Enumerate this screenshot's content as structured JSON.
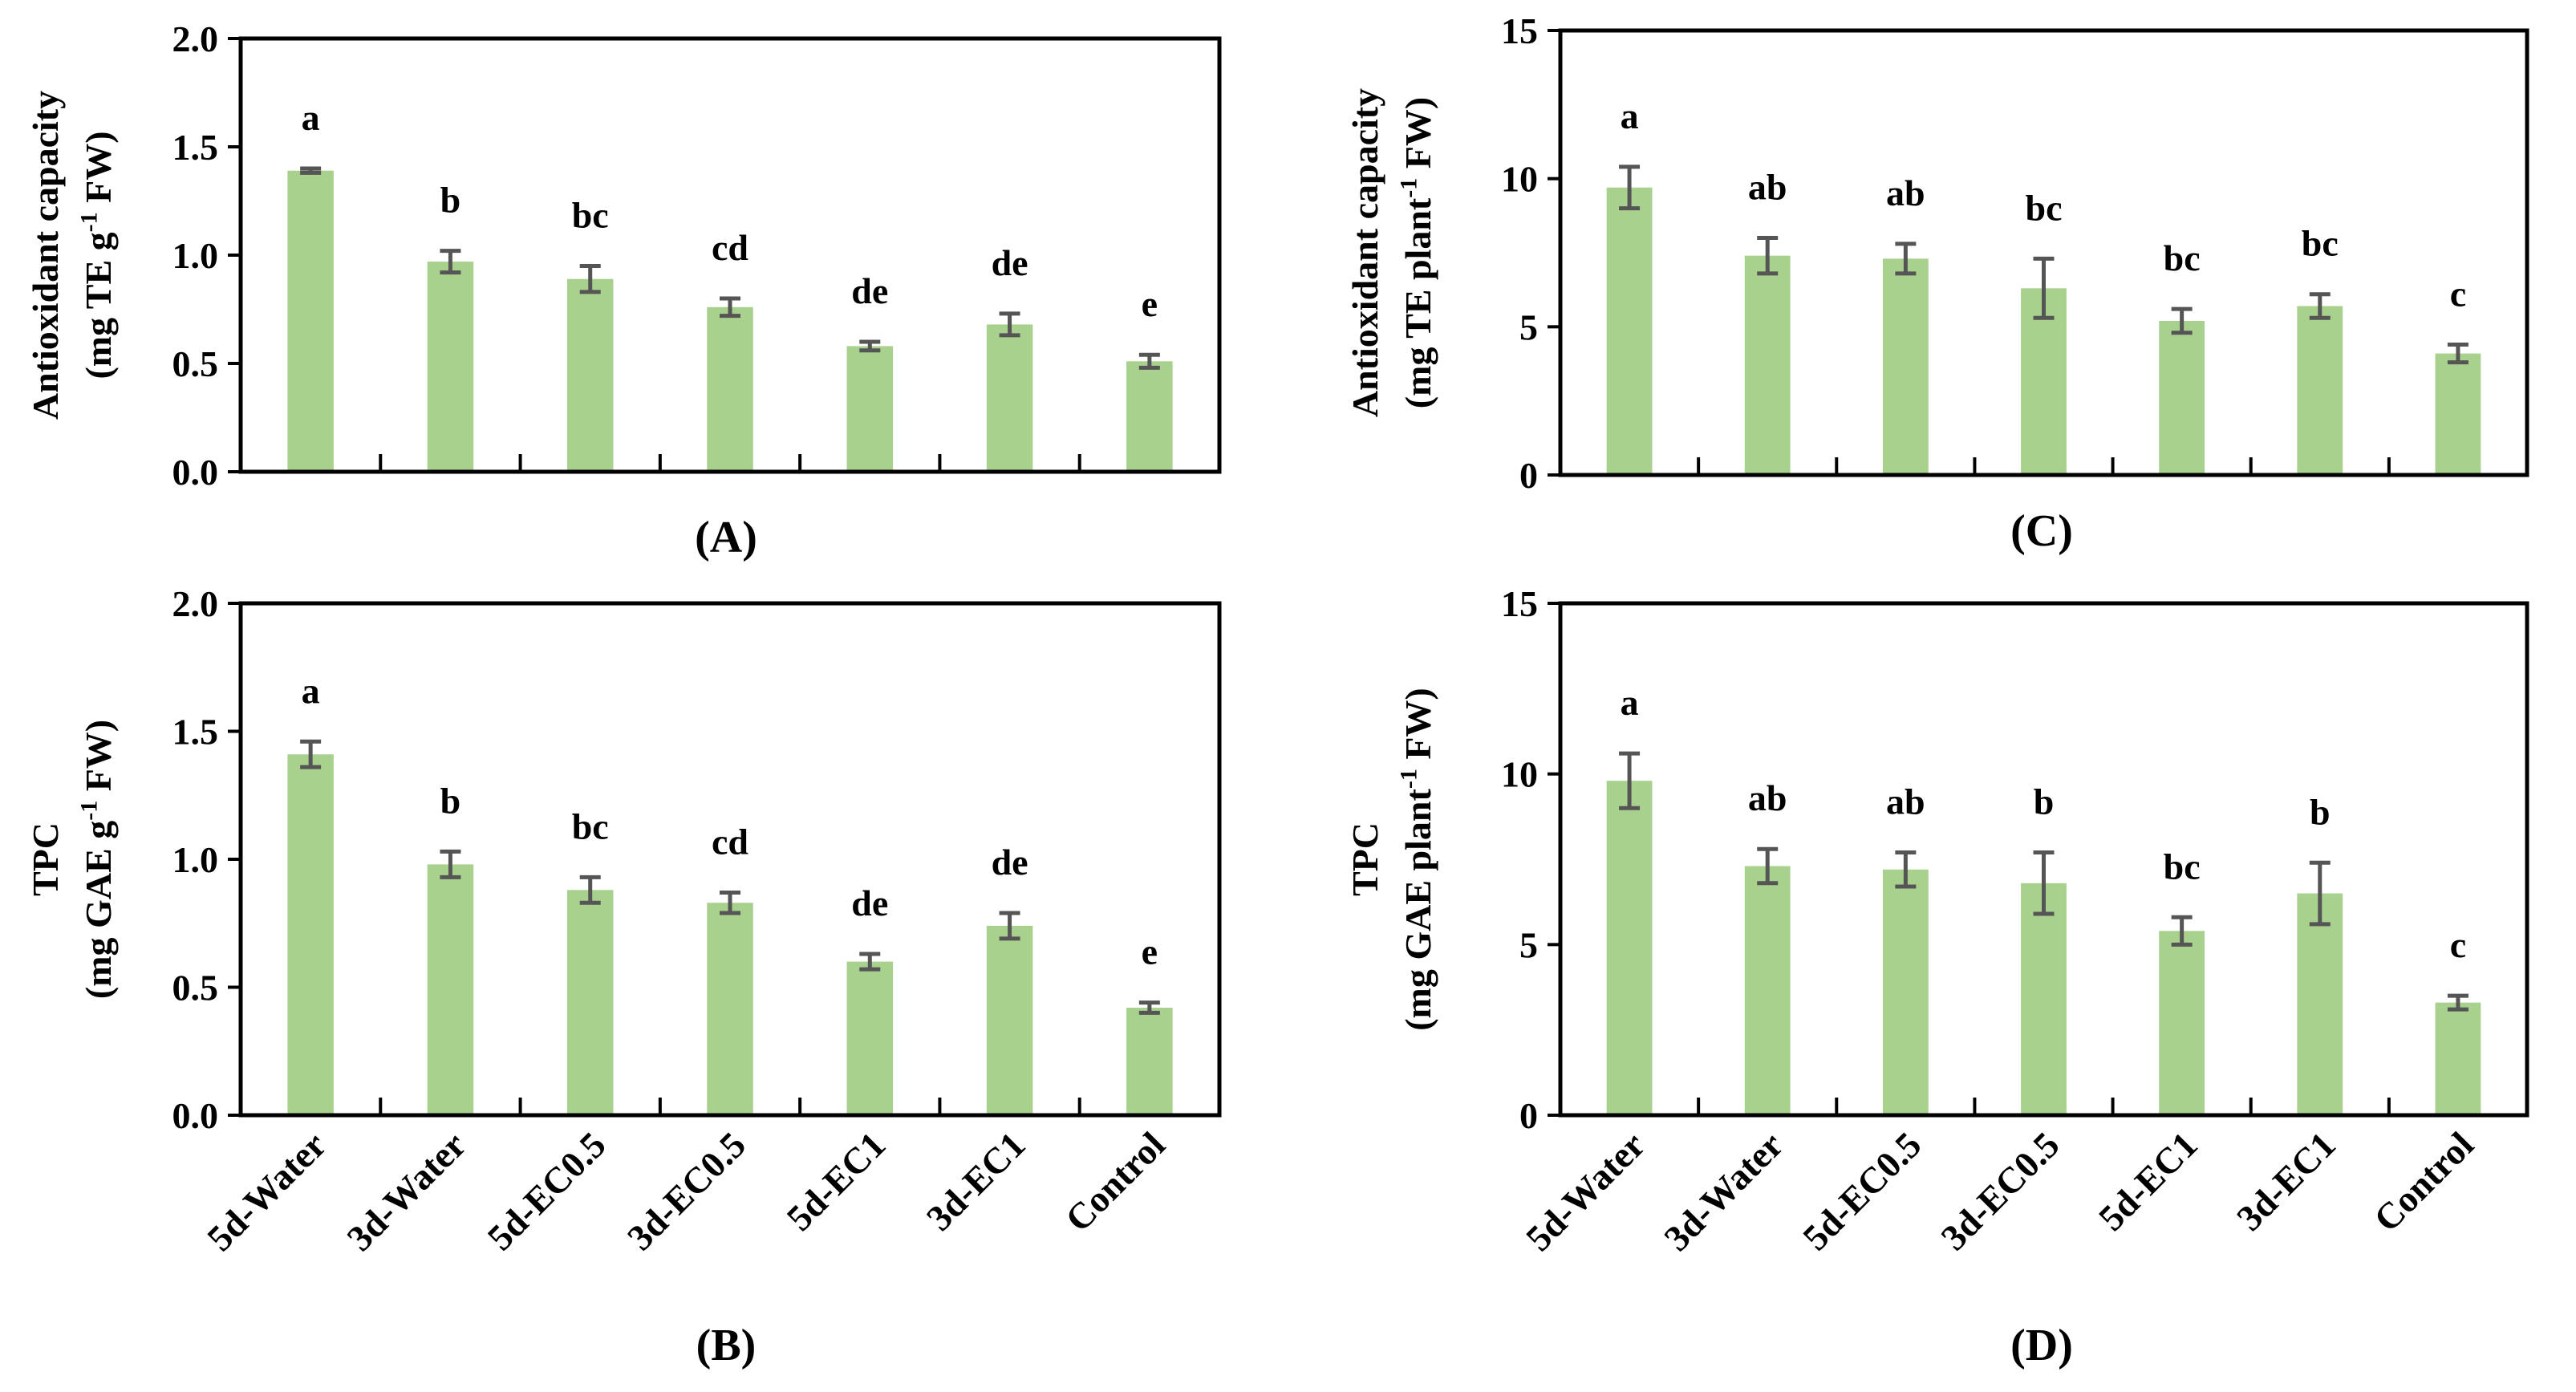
{
  "colors": {
    "bar": "#a9d18e",
    "error": "#555555",
    "axis": "#000000"
  },
  "categories": [
    "5d-Water",
    "3d-Water",
    "5d-EC0.5",
    "3d-EC0.5",
    "5d-EC1",
    "3d-EC1",
    "Control"
  ],
  "chart_data": [
    {
      "type": "bar",
      "panel_label": "(A)",
      "ylabel_line1": "Antioxidant capacity",
      "ylabel_line2": "(mg TE g-1 FW)",
      "ylim": [
        0,
        2.0
      ],
      "yticks": [
        "0.0",
        "0.5",
        "1.0",
        "1.5",
        "2.0"
      ],
      "values": [
        1.39,
        0.97,
        0.89,
        0.76,
        0.58,
        0.68,
        0.51
      ],
      "errors": [
        0.01,
        0.05,
        0.06,
        0.04,
        0.02,
        0.05,
        0.03
      ],
      "letters": [
        "a",
        "b",
        "bc",
        "cd",
        "de",
        "de",
        "e"
      ],
      "show_xlabels": false
    },
    {
      "type": "bar",
      "panel_label": "(B)",
      "ylabel_line1": "TPC",
      "ylabel_line2": "(mg GAE g-1 FW)",
      "ylim": [
        0,
        2.0
      ],
      "yticks": [
        "0.0",
        "0.5",
        "1.0",
        "1.5",
        "2.0"
      ],
      "values": [
        1.41,
        0.98,
        0.88,
        0.83,
        0.6,
        0.74,
        0.42
      ],
      "errors": [
        0.05,
        0.05,
        0.05,
        0.04,
        0.03,
        0.05,
        0.02
      ],
      "letters": [
        "a",
        "b",
        "bc",
        "cd",
        "de",
        "de",
        "e"
      ],
      "show_xlabels": true
    },
    {
      "type": "bar",
      "panel_label": "(C)",
      "ylabel_line1": "Antioxidant capacity",
      "ylabel_line2": "(mg TE plant-1 FW)",
      "ylim": [
        0,
        15
      ],
      "yticks": [
        "0",
        "5",
        "10",
        "15"
      ],
      "values": [
        9.7,
        7.4,
        7.3,
        6.3,
        5.2,
        5.7,
        4.1
      ],
      "errors": [
        0.7,
        0.6,
        0.5,
        1.0,
        0.4,
        0.4,
        0.3
      ],
      "letters": [
        "a",
        "ab",
        "ab",
        "bc",
        "bc",
        "bc",
        "c"
      ],
      "show_xlabels": false
    },
    {
      "type": "bar",
      "panel_label": "(D)",
      "ylabel_line1": "TPC",
      "ylabel_line2": "(mg GAE plant-1 FW)",
      "ylim": [
        0,
        15
      ],
      "yticks": [
        "0",
        "5",
        "10",
        "15"
      ],
      "values": [
        9.8,
        7.3,
        7.2,
        6.8,
        5.4,
        6.5,
        3.3
      ],
      "errors": [
        0.8,
        0.5,
        0.5,
        0.9,
        0.4,
        0.9,
        0.2
      ],
      "letters": [
        "a",
        "ab",
        "ab",
        "b",
        "bc",
        "b",
        "c"
      ],
      "show_xlabels": true
    }
  ]
}
